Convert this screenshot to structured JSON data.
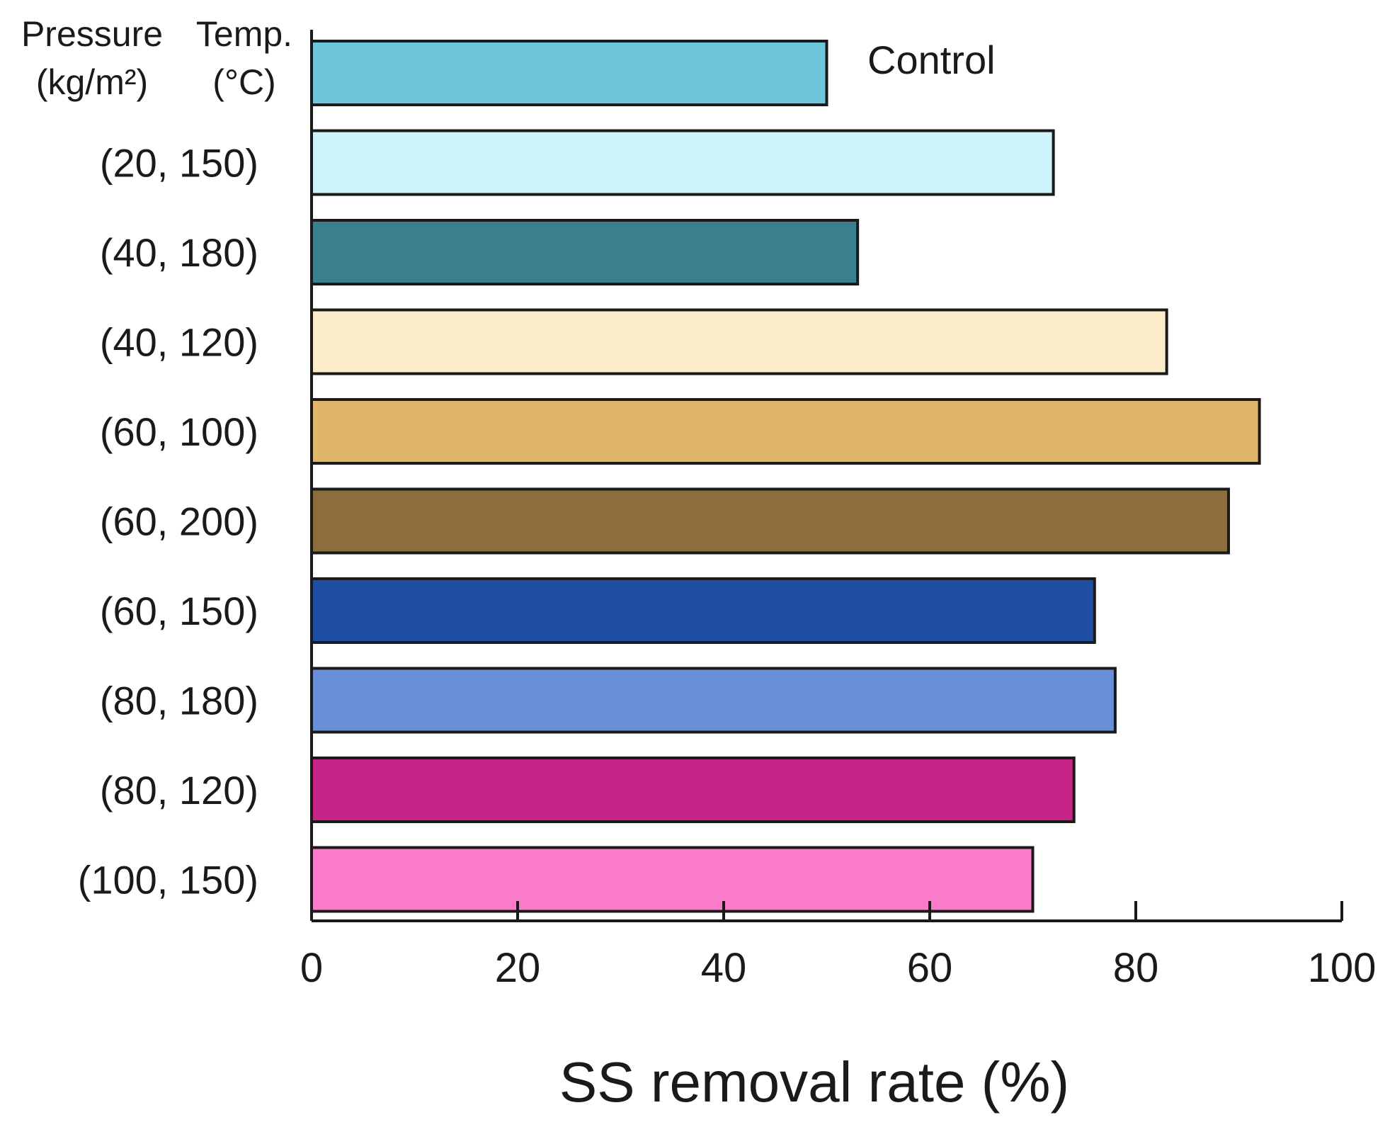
{
  "chart_data": {
    "type": "bar",
    "orientation": "horizontal",
    "header": {
      "col1_line1": "Pressure",
      "col1_line2": "(kg/m²)",
      "col2_line1": "Temp.",
      "col2_line2": "(°C)"
    },
    "categories": [
      "(20, 150)",
      "(40, 180)",
      "(40, 120)",
      "(60, 100)",
      "(60, 200)",
      "(60, 150)",
      "(80, 180)",
      "(80, 120)",
      "(100, 150)"
    ],
    "control": {
      "label": "Control",
      "value": 50,
      "color": "#6ec6dd"
    },
    "values": [
      72,
      53,
      83,
      92,
      89,
      76,
      78,
      74,
      70
    ],
    "colors": [
      "#cdf3fb",
      "#3a7f8b",
      "#fdecc9",
      "#e2b66a",
      "#8b6e3b",
      "#1e4fa2",
      "#698fd6",
      "#c62487",
      "#fa7cc8"
    ],
    "xlim": [
      0,
      100
    ],
    "xticks": [
      0,
      20,
      40,
      60,
      80,
      100
    ],
    "xlabel": "SS removal rate (%)",
    "bar_outline_color": "#1a1a1a"
  }
}
